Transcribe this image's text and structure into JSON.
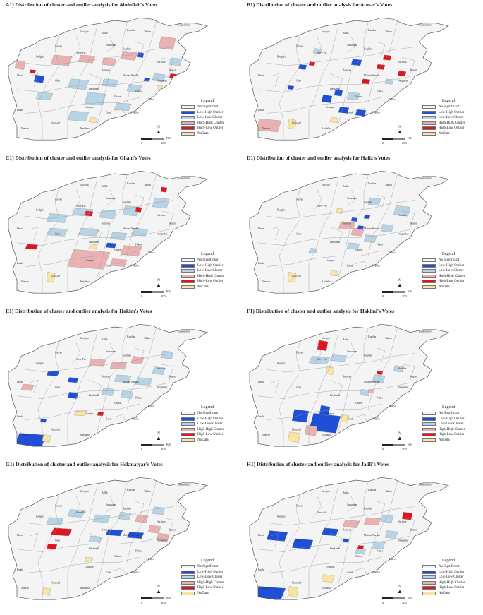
{
  "colors": {
    "no_significant": "#f4f4f4",
    "low_high_outlier": "#1f4fd6",
    "low_low_cluster": "#b7d3e6",
    "high_high_cluster": "#e9b1b1",
    "high_low_outlier": "#e0141e",
    "nodata": "#f7e5a6",
    "border": "#8a8a8a"
  },
  "legend": {
    "title": "Legend",
    "items": [
      {
        "label": "No Significant",
        "key": "no_significant"
      },
      {
        "label": "Low-High Outlier",
        "key": "low_high_outlier"
      },
      {
        "label": "Low-Low Cluster",
        "key": "low_low_cluster"
      },
      {
        "label": "High-High Cluster",
        "key": "high_high_cluster"
      },
      {
        "label": "High-Low Outlier",
        "key": "high_low_outlier"
      },
      {
        "label": "NoData",
        "key": "nodata"
      }
    ]
  },
  "scale": {
    "unit": "KM",
    "zero": "0",
    "max": "200"
  },
  "north_label": "N",
  "place_labels": [
    "Badakhshan",
    "Jawzjan",
    "Balkh",
    "Kunduz",
    "Takhar",
    "Faryab",
    "Samangan",
    "Sar-e-Pul",
    "Baghlan",
    "Badghis",
    "Bamyan",
    "Nuristan",
    "Kunar",
    "Herat",
    "Ghor",
    "Maidan Wardak",
    "Nangarhar",
    "Daykundi",
    "Ghazni",
    "Khost",
    "Uruzgan",
    "Paktia",
    "Farah",
    "Zabul",
    "Paktika",
    "Nimroz",
    "Helmand",
    "Kandahar"
  ],
  "panels": [
    {
      "id": "A1",
      "title": "A1) Distribution of cluster and outlier analysis for Abdullah's Votes",
      "regions": [
        [
          "high_high_cluster",
          0.05,
          0.55,
          0.05,
          0.07
        ],
        [
          "low_high_outlier",
          0.14,
          0.45,
          0.05,
          0.06
        ],
        [
          "high_high_cluster",
          0.22,
          0.58,
          0.1,
          0.08
        ],
        [
          "high_high_cluster",
          0.35,
          0.6,
          0.08,
          0.06
        ],
        [
          "high_high_cluster",
          0.46,
          0.58,
          0.07,
          0.06
        ],
        [
          "high_high_cluster",
          0.55,
          0.62,
          0.08,
          0.07
        ],
        [
          "low_high_outlier",
          0.63,
          0.64,
          0.03,
          0.04
        ],
        [
          "high_high_cluster",
          0.73,
          0.7,
          0.08,
          0.1
        ],
        [
          "low_low_cluster",
          0.78,
          0.58,
          0.06,
          0.06
        ],
        [
          "high_low_outlier",
          0.78,
          0.48,
          0.04,
          0.04
        ],
        [
          "low_low_cluster",
          0.7,
          0.46,
          0.06,
          0.06
        ],
        [
          "low_low_cluster",
          0.58,
          0.38,
          0.07,
          0.06
        ],
        [
          "low_low_cluster",
          0.46,
          0.42,
          0.08,
          0.06
        ],
        [
          "low_low_cluster",
          0.3,
          0.4,
          0.1,
          0.08
        ],
        [
          "low_low_cluster",
          0.38,
          0.28,
          0.1,
          0.1
        ],
        [
          "low_low_cluster",
          0.52,
          0.24,
          0.08,
          0.06
        ],
        [
          "low_low_cluster",
          0.3,
          0.16,
          0.1,
          0.08
        ],
        [
          "low_low_cluster",
          0.15,
          0.32,
          0.08,
          0.06
        ],
        [
          "nodata",
          0.4,
          0.15,
          0.04,
          0.04
        ],
        [
          "nodata",
          0.72,
          0.4,
          0.03,
          0.03
        ],
        [
          "low_high_outlier",
          0.66,
          0.46,
          0.03,
          0.03
        ],
        [
          "high_low_outlier",
          0.12,
          0.52,
          0.03,
          0.03
        ]
      ]
    },
    {
      "id": "B1",
      "title": "B1) Distribution of cluster and outlier analysis for Atmar's Votes",
      "regions": [
        [
          "low_low_cluster",
          0.32,
          0.67,
          0.04,
          0.04
        ],
        [
          "low_high_outlier",
          0.25,
          0.55,
          0.04,
          0.04
        ],
        [
          "low_high_outlier",
          0.5,
          0.58,
          0.05,
          0.05
        ],
        [
          "high_low_outlier",
          0.65,
          0.62,
          0.04,
          0.04
        ],
        [
          "high_low_outlier",
          0.72,
          0.5,
          0.04,
          0.04
        ],
        [
          "low_high_outlier",
          0.42,
          0.35,
          0.04,
          0.05
        ],
        [
          "low_high_outlier",
          0.36,
          0.3,
          0.05,
          0.06
        ],
        [
          "low_high_outlier",
          0.44,
          0.22,
          0.05,
          0.05
        ],
        [
          "low_high_outlier",
          0.52,
          0.2,
          0.05,
          0.05
        ],
        [
          "low_low_cluster",
          0.48,
          0.32,
          0.06,
          0.06
        ],
        [
          "high_low_outlier",
          0.55,
          0.44,
          0.04,
          0.04
        ],
        [
          "low_low_cluster",
          0.66,
          0.44,
          0.04,
          0.04
        ],
        [
          "high_low_outlier",
          0.3,
          0.58,
          0.03,
          0.03
        ],
        [
          "low_high_outlier",
          0.2,
          0.4,
          0.03,
          0.03
        ],
        [
          "high_high_cluster",
          0.05,
          0.08,
          0.12,
          0.1
        ],
        [
          "nodata",
          0.2,
          0.1,
          0.04,
          0.08
        ],
        [
          "nodata",
          0.4,
          0.15,
          0.04,
          0.04
        ],
        [
          "high_low_outlier",
          0.62,
          0.55,
          0.04,
          0.04
        ]
      ]
    },
    {
      "id": "C1",
      "title": "C1) Distribution of cluster and outlier analysis for Ghani's Votes",
      "regions": [
        [
          "low_low_cluster",
          0.2,
          0.55,
          0.1,
          0.07
        ],
        [
          "low_low_cluster",
          0.32,
          0.6,
          0.1,
          0.06
        ],
        [
          "low_low_cluster",
          0.45,
          0.58,
          0.08,
          0.07
        ],
        [
          "low_low_cluster",
          0.56,
          0.6,
          0.08,
          0.08
        ],
        [
          "low_low_cluster",
          0.7,
          0.66,
          0.08,
          0.08
        ],
        [
          "high_low_outlier",
          0.74,
          0.78,
          0.03,
          0.04
        ],
        [
          "low_low_cluster",
          0.6,
          0.45,
          0.08,
          0.06
        ],
        [
          "low_low_cluster",
          0.5,
          0.42,
          0.08,
          0.06
        ],
        [
          "low_low_cluster",
          0.35,
          0.45,
          0.1,
          0.06
        ],
        [
          "low_low_cluster",
          0.2,
          0.45,
          0.1,
          0.06
        ],
        [
          "low_high_outlier",
          0.48,
          0.36,
          0.05,
          0.04
        ],
        [
          "high_high_cluster",
          0.3,
          0.2,
          0.2,
          0.15
        ],
        [
          "high_high_cluster",
          0.55,
          0.3,
          0.1,
          0.08
        ],
        [
          "high_high_cluster",
          0.5,
          0.22,
          0.08,
          0.06
        ],
        [
          "high_low_outlier",
          0.1,
          0.35,
          0.06,
          0.04
        ],
        [
          "high_low_outlier",
          0.38,
          0.6,
          0.04,
          0.04
        ],
        [
          "high_low_outlier",
          0.62,
          0.63,
          0.03,
          0.04
        ],
        [
          "nodata",
          0.2,
          0.1,
          0.04,
          0.08
        ],
        [
          "nodata",
          0.4,
          0.35,
          0.04,
          0.04
        ]
      ]
    },
    {
      "id": "D1",
      "title": "D1) Distribution of cluster and outlier analysis for Hafiz's Votes",
      "regions": [
        [
          "low_low_cluster",
          0.58,
          0.68,
          0.06,
          0.06
        ],
        [
          "low_low_cluster",
          0.7,
          0.6,
          0.08,
          0.08
        ],
        [
          "low_low_cluster",
          0.64,
          0.48,
          0.06,
          0.06
        ],
        [
          "low_low_cluster",
          0.56,
          0.4,
          0.06,
          0.06
        ],
        [
          "low_low_cluster",
          0.48,
          0.35,
          0.06,
          0.05
        ],
        [
          "high_high_cluster",
          0.44,
          0.5,
          0.08,
          0.06
        ],
        [
          "high_high_cluster",
          0.5,
          0.45,
          0.06,
          0.06
        ],
        [
          "low_high_outlier",
          0.53,
          0.5,
          0.03,
          0.03
        ],
        [
          "low_high_outlier",
          0.56,
          0.58,
          0.03,
          0.03
        ],
        [
          "low_high_outlier",
          0.5,
          0.56,
          0.03,
          0.03
        ],
        [
          "low_low_cluster",
          0.3,
          0.32,
          0.04,
          0.04
        ],
        [
          "nodata",
          0.43,
          0.62,
          0.03,
          0.04
        ],
        [
          "nodata",
          0.2,
          0.1,
          0.04,
          0.08
        ],
        [
          "nodata",
          0.4,
          0.15,
          0.04,
          0.04
        ]
      ]
    },
    {
      "id": "E1",
      "title": "E1) Distribution of cluster and outlier analysis for Hakim's Votes",
      "regions": [
        [
          "high_high_cluster",
          0.4,
          0.62,
          0.08,
          0.06
        ],
        [
          "high_high_cluster",
          0.5,
          0.6,
          0.08,
          0.06
        ],
        [
          "high_high_cluster",
          0.6,
          0.64,
          0.06,
          0.06
        ],
        [
          "low_high_outlier",
          0.2,
          0.55,
          0.06,
          0.04
        ],
        [
          "low_high_outlier",
          0.3,
          0.5,
          0.05,
          0.04
        ],
        [
          "low_low_cluster",
          0.52,
          0.5,
          0.08,
          0.06
        ],
        [
          "low_low_cluster",
          0.62,
          0.48,
          0.08,
          0.06
        ],
        [
          "low_low_cluster",
          0.7,
          0.56,
          0.06,
          0.06
        ],
        [
          "low_low_cluster",
          0.74,
          0.68,
          0.06,
          0.06
        ],
        [
          "low_low_cluster",
          0.55,
          0.38,
          0.06,
          0.06
        ],
        [
          "low_low_cluster",
          0.46,
          0.4,
          0.06,
          0.06
        ],
        [
          "low_high_outlier",
          0.3,
          0.38,
          0.05,
          0.05
        ],
        [
          "high_high_cluster",
          0.08,
          0.44,
          0.06,
          0.05
        ],
        [
          "low_high_outlier",
          0.05,
          0.02,
          0.15,
          0.1
        ],
        [
          "nodata",
          0.18,
          0.05,
          0.04,
          0.06
        ],
        [
          "low_high_outlier",
          0.17,
          0.2,
          0.03,
          0.03
        ],
        [
          "nodata",
          0.33,
          0.25,
          0.06,
          0.04
        ],
        [
          "high_low_outlier",
          0.44,
          0.25,
          0.03,
          0.03
        ]
      ]
    },
    {
      "id": "F1",
      "title": "F1) Distribution of cluster and outlier analysis for Hakimi's Votes",
      "regions": [
        [
          "high_low_outlier",
          0.34,
          0.74,
          0.05,
          0.08
        ],
        [
          "low_low_cluster",
          0.3,
          0.64,
          0.1,
          0.06
        ],
        [
          "low_low_cluster",
          0.4,
          0.66,
          0.08,
          0.05
        ],
        [
          "nodata",
          0.38,
          0.56,
          0.04,
          0.06
        ],
        [
          "low_low_cluster",
          0.6,
          0.5,
          0.06,
          0.06
        ],
        [
          "high_low_outlier",
          0.62,
          0.56,
          0.03,
          0.03
        ],
        [
          "low_low_cluster",
          0.7,
          0.58,
          0.05,
          0.05
        ],
        [
          "low_low_cluster",
          0.54,
          0.4,
          0.05,
          0.05
        ],
        [
          "high_high_cluster",
          0.58,
          0.42,
          0.03,
          0.03
        ],
        [
          "low_high_outlier",
          0.3,
          0.12,
          0.15,
          0.15
        ],
        [
          "low_high_outlier",
          0.22,
          0.2,
          0.08,
          0.1
        ],
        [
          "low_high_outlier",
          0.35,
          0.25,
          0.05,
          0.08
        ],
        [
          "high_high_cluster",
          0.28,
          0.1,
          0.06,
          0.08
        ],
        [
          "nodata",
          0.2,
          0.05,
          0.06,
          0.08
        ],
        [
          "nodata",
          0.45,
          0.2,
          0.04,
          0.06
        ]
      ]
    },
    {
      "id": "G1",
      "title": "G1) Distribution of cluster and outlier analysis for Hekmatyar's Votes",
      "regions": [
        [
          "low_low_cluster",
          0.2,
          0.58,
          0.08,
          0.06
        ],
        [
          "low_low_cluster",
          0.3,
          0.64,
          0.08,
          0.06
        ],
        [
          "low_low_cluster",
          0.42,
          0.6,
          0.08,
          0.06
        ],
        [
          "low_low_cluster",
          0.54,
          0.62,
          0.06,
          0.06
        ],
        [
          "low_low_cluster",
          0.7,
          0.66,
          0.06,
          0.06
        ],
        [
          "high_high_cluster",
          0.62,
          0.6,
          0.06,
          0.06
        ],
        [
          "low_high_outlier",
          0.48,
          0.5,
          0.08,
          0.05
        ],
        [
          "low_high_outlier",
          0.58,
          0.48,
          0.08,
          0.05
        ],
        [
          "high_high_cluster",
          0.68,
          0.52,
          0.06,
          0.06
        ],
        [
          "high_high_cluster",
          0.72,
          0.46,
          0.06,
          0.06
        ],
        [
          "high_low_outlier",
          0.22,
          0.5,
          0.1,
          0.06
        ],
        [
          "high_low_outlier",
          0.2,
          0.4,
          0.05,
          0.04
        ],
        [
          "nodata",
          0.18,
          0.05,
          0.04,
          0.06
        ],
        [
          "nodata",
          0.38,
          0.3,
          0.04,
          0.04
        ],
        [
          "low_low_cluster",
          0.4,
          0.45,
          0.06,
          0.05
        ]
      ]
    },
    {
      "id": "H1",
      "title": "H1) Distribution of cluster and outlier analysis for Jalili's Votes",
      "regions": [
        [
          "low_high_outlier",
          0.1,
          0.46,
          0.1,
          0.08
        ],
        [
          "low_high_outlier",
          0.22,
          0.4,
          0.1,
          0.08
        ],
        [
          "low_high_outlier",
          0.36,
          0.5,
          0.08,
          0.06
        ],
        [
          "high_high_cluster",
          0.46,
          0.56,
          0.08,
          0.06
        ],
        [
          "high_high_cluster",
          0.56,
          0.58,
          0.08,
          0.06
        ],
        [
          "high_low_outlier",
          0.74,
          0.62,
          0.05,
          0.06
        ],
        [
          "low_low_cluster",
          0.64,
          0.6,
          0.06,
          0.06
        ],
        [
          "low_low_cluster",
          0.66,
          0.48,
          0.06,
          0.06
        ],
        [
          "low_low_cluster",
          0.6,
          0.4,
          0.06,
          0.06
        ],
        [
          "low_low_cluster",
          0.52,
          0.36,
          0.05,
          0.05
        ],
        [
          "high_low_outlier",
          0.53,
          0.4,
          0.03,
          0.03
        ],
        [
          "low_high_outlier",
          0.04,
          0.02,
          0.15,
          0.1
        ],
        [
          "nodata",
          0.2,
          0.04,
          0.05,
          0.08
        ],
        [
          "nodata",
          0.36,
          0.15,
          0.06,
          0.06
        ],
        [
          "low_high_outlier",
          0.46,
          0.45,
          0.03,
          0.03
        ]
      ]
    }
  ]
}
